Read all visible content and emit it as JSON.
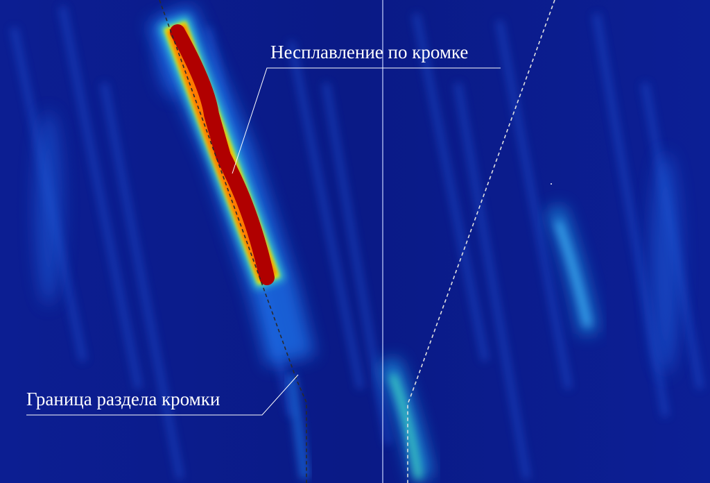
{
  "annotations": {
    "defect_label": "Несплавление по кромке",
    "boundary_label": "Граница раздела кромки"
  },
  "colors": {
    "background": "#0a1a8c",
    "defect_core": "#b00000",
    "defect_edge": "#ffd000",
    "highlight": "#3fc0ff",
    "guide_line": "#c8d4ff",
    "boundary_line": "#2a2a2a"
  }
}
